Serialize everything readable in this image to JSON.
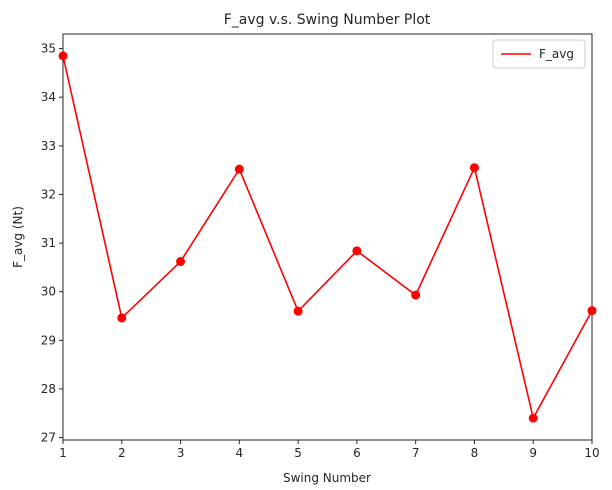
{
  "chart_data": {
    "type": "line",
    "title": "F_avg v.s. Swing Number Plot",
    "xlabel": "Swing Number",
    "ylabel": "F_avg (Nt)",
    "xlim": [
      1,
      10
    ],
    "ylim": [
      26.95,
      35.3
    ],
    "x_ticks": [
      1,
      2,
      3,
      4,
      5,
      6,
      7,
      8,
      9,
      10
    ],
    "y_ticks": [
      27,
      28,
      29,
      30,
      31,
      32,
      33,
      34,
      35
    ],
    "grid": false,
    "legend_position": "top-right",
    "series": [
      {
        "name": "F_avg",
        "color": "#ff0000",
        "marker": "circle",
        "x": [
          1,
          2,
          3,
          4,
          5,
          6,
          7,
          8,
          9,
          10
        ],
        "y": [
          34.85,
          29.46,
          30.62,
          32.52,
          29.6,
          30.84,
          29.93,
          32.55,
          27.4,
          29.61
        ]
      }
    ]
  }
}
